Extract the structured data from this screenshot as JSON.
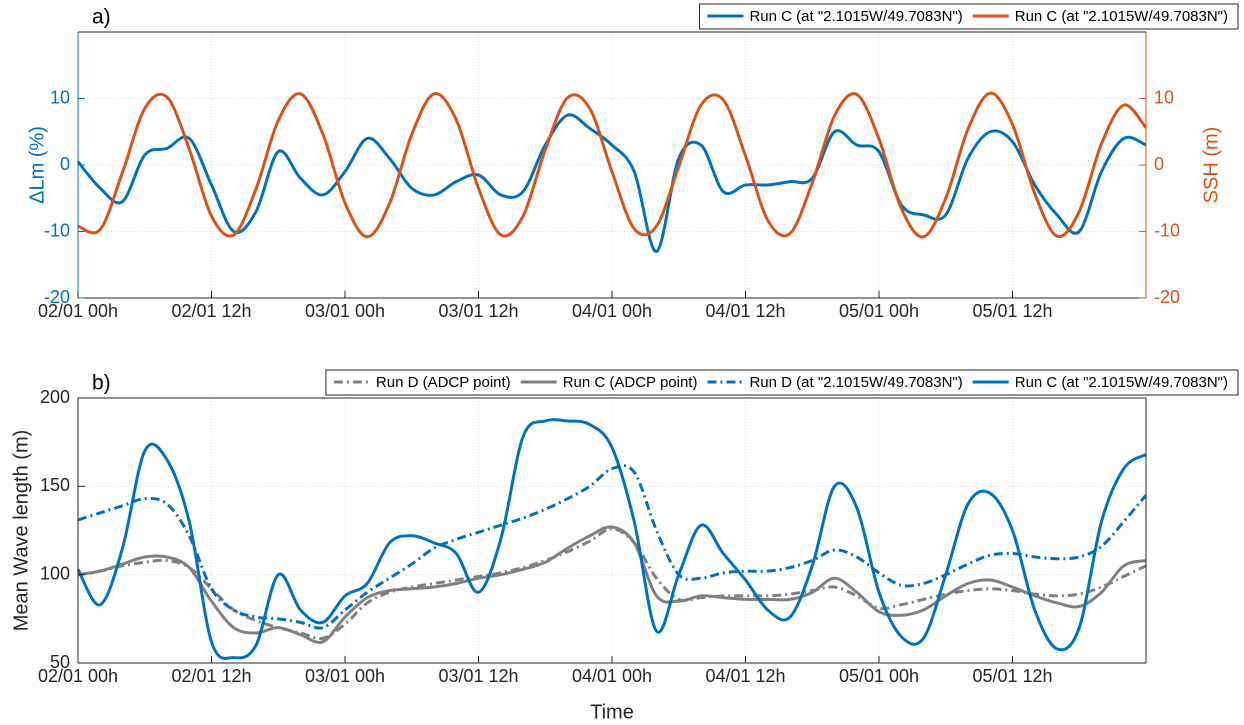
{
  "chart_data": [
    {
      "type": "line",
      "title": "a)",
      "ylabel": "ΔLm (%)",
      "y2label": "SSH (m)",
      "ycolor": "#0072BD",
      "y2color": "#D95319",
      "legend": "top right",
      "grid": true,
      "x": [
        "02/01 00h",
        "02/01 02h",
        "02/01 04h",
        "02/01 06h",
        "02/01 08h",
        "02/01 10h",
        "02/01 12h",
        "02/01 14h",
        "02/01 16h",
        "02/01 18h",
        "02/01 20h",
        "02/01 22h",
        "03/01 00h",
        "03/01 02h",
        "03/01 04h",
        "03/01 06h",
        "03/01 08h",
        "03/01 10h",
        "03/01 12h",
        "03/01 14h",
        "03/01 16h",
        "03/01 18h",
        "03/01 20h",
        "03/01 22h",
        "04/01 00h",
        "04/01 02h",
        "04/01 04h",
        "04/01 06h",
        "04/01 08h",
        "04/01 10h",
        "04/01 12h",
        "04/01 14h",
        "04/01 16h",
        "04/01 18h",
        "04/01 20h",
        "04/01 22h",
        "05/01 00h",
        "05/01 02h",
        "05/01 04h",
        "05/01 06h",
        "05/01 08h",
        "05/01 10h",
        "05/01 12h",
        "05/01 14h",
        "05/01 16h",
        "05/01 18h",
        "05/01 20h",
        "05/01 22h",
        "06/01 00h"
      ],
      "xlim": [
        "02/01 00h",
        "06/01 00h"
      ],
      "xticks": [
        "02/01 00h",
        "02/01 12h",
        "03/01 00h",
        "03/01 12h",
        "04/01 00h",
        "04/01 12h",
        "05/01 00h",
        "05/01 12h"
      ],
      "ylim": [
        -20,
        20
      ],
      "yticks": [
        -20,
        -10,
        0,
        10
      ],
      "y2lim": [
        -20,
        20
      ],
      "y2ticks": [
        -20,
        -10,
        0,
        10
      ],
      "series": [
        {
          "name": "Run C (at \"2.1015W/49.7083N\")",
          "color": "#0072BD",
          "line_style": "solid",
          "axis": "y",
          "values": [
            0.5,
            -3.5,
            -5.5,
            1.5,
            2.5,
            4,
            -3,
            -10,
            -7,
            2,
            -2,
            -4.5,
            -1,
            4,
            1,
            -3.5,
            -4.5,
            -2.5,
            -1.5,
            -4.5,
            -4,
            3,
            7.5,
            5.5,
            3,
            -1,
            -13,
            1,
            3,
            -4,
            -3,
            -3,
            -2.5,
            -2,
            5,
            3,
            2,
            -6,
            -7.5,
            -7.5,
            1,
            5,
            3.5,
            -3,
            -7.5,
            -10,
            -1,
            4,
            3
          ]
        },
        {
          "name": "Run C (at \"2.1015W/49.7083N\")",
          "color": "#D95319",
          "line_style": "solid",
          "axis": "y2",
          "values": [
            -9.2,
            -9.7,
            -1.1,
            8.5,
            10.2,
            2.4,
            -7.7,
            -10.5,
            -3.6,
            6.7,
            10.7,
            4.7,
            -5.7,
            -10.8,
            -5.8,
            4.6,
            10.7,
            6.8,
            -3.5,
            -10.5,
            -7.7,
            2.3,
            10.1,
            8.5,
            -1,
            -9.6,
            -9.2,
            -0.2,
            9,
            9.8,
            1.4,
            -8.3,
            -10.3,
            -2.7,
            7.4,
            10.6,
            3.9,
            -6.5,
            -10.8,
            -5,
            5.4,
            10.8,
            6.1,
            -4.3,
            -10.7,
            -7,
            3.2,
            9,
            5.6
          ]
        }
      ]
    },
    {
      "type": "line",
      "title": "b)",
      "ylabel": "Mean Wave length (m)",
      "xlabel": "Time",
      "legend": "top",
      "grid": true,
      "x": [
        "02/01 00h",
        "02/01 02h",
        "02/01 04h",
        "02/01 06h",
        "02/01 08h",
        "02/01 10h",
        "02/01 12h",
        "02/01 14h",
        "02/01 16h",
        "02/01 18h",
        "02/01 20h",
        "02/01 22h",
        "03/01 00h",
        "03/01 02h",
        "03/01 04h",
        "03/01 06h",
        "03/01 08h",
        "03/01 10h",
        "03/01 12h",
        "03/01 14h",
        "03/01 16h",
        "03/01 18h",
        "03/01 20h",
        "03/01 22h",
        "04/01 00h",
        "04/01 02h",
        "04/01 04h",
        "04/01 06h",
        "04/01 08h",
        "04/01 10h",
        "04/01 12h",
        "04/01 14h",
        "04/01 16h",
        "04/01 18h",
        "04/01 20h",
        "04/01 22h",
        "05/01 00h",
        "05/01 02h",
        "05/01 04h",
        "05/01 06h",
        "05/01 08h",
        "05/01 10h",
        "05/01 12h",
        "05/01 14h",
        "05/01 16h",
        "05/01 18h",
        "05/01 20h",
        "05/01 22h",
        "06/01 00h"
      ],
      "xlim": [
        "02/01 00h",
        "06/01 00h"
      ],
      "xticks": [
        "02/01 00h",
        "02/01 12h",
        "03/01 00h",
        "03/01 12h",
        "04/01 00h",
        "04/01 12h",
        "05/01 00h",
        "05/01 12h"
      ],
      "ylim": [
        50,
        200
      ],
      "yticks": [
        50,
        100,
        150,
        200
      ],
      "series": [
        {
          "name": "Run D (ADCP point)",
          "color": "#808080",
          "line_style": "dash-dot",
          "values": [
            100,
            102,
            105,
            107,
            108,
            104,
            92,
            80,
            74,
            70,
            67,
            64,
            72,
            84,
            90,
            93,
            95,
            97,
            99,
            101,
            104,
            108,
            113,
            119,
            126,
            118,
            98,
            86,
            87,
            88,
            88,
            88,
            89,
            91,
            93,
            88,
            81,
            83,
            86,
            89,
            91,
            92,
            91,
            89,
            88,
            89,
            93,
            99,
            105
          ]
        },
        {
          "name": "Run C (ADCP point)",
          "color": "#808080",
          "line_style": "solid",
          "values": [
            100,
            102,
            106,
            110,
            110,
            104,
            85,
            70,
            67,
            70,
            66,
            62,
            76,
            87,
            91,
            92,
            93,
            95,
            98,
            100,
            103,
            107,
            115,
            122,
            127,
            118,
            88,
            85,
            88,
            87,
            86,
            86,
            86,
            90,
            98,
            90,
            79,
            77,
            80,
            88,
            95,
            97,
            93,
            88,
            84,
            82,
            90,
            105,
            108
          ]
        },
        {
          "name": "Run D (at \"2.1015W/49.7083N\")",
          "color": "#0072BD",
          "line_style": "dash-dot",
          "values": [
            131,
            135,
            139,
            143,
            140,
            122,
            92,
            80,
            76,
            75,
            73,
            70,
            80,
            90,
            98,
            106,
            115,
            120,
            124,
            128,
            132,
            137,
            143,
            150,
            160,
            158,
            125,
            100,
            98,
            101,
            102,
            102,
            104,
            108,
            114,
            110,
            101,
            94,
            95,
            100,
            106,
            111,
            112,
            110,
            109,
            110,
            116,
            130,
            145
          ]
        },
        {
          "name": "Run C (at \"2.1015W/49.7083N\")",
          "color": "#0072BD",
          "line_style": "solid",
          "values": [
            103,
            83,
            115,
            170,
            165,
            130,
            62,
            53,
            60,
            100,
            80,
            73,
            88,
            95,
            118,
            122,
            118,
            112,
            90,
            120,
            178,
            187,
            187,
            185,
            172,
            130,
            68,
            100,
            128,
            112,
            97,
            80,
            76,
            105,
            150,
            138,
            90,
            65,
            64,
            100,
            140,
            146,
            125,
            80,
            58,
            70,
            130,
            160,
            168
          ]
        }
      ]
    }
  ]
}
